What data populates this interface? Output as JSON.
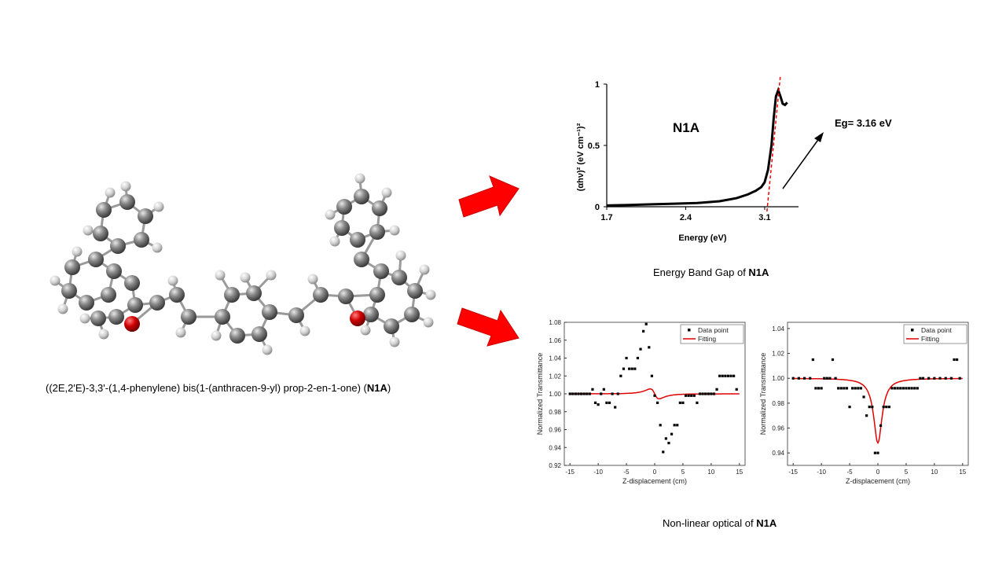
{
  "molecule": {
    "caption_prefix": "((2E,2'E)-3,3'-(1,4-phenylene) bis(1-(anthracen-9-yl) prop-2-en-1-one) (",
    "caption_bold": "N1A",
    "caption_suffix": ")"
  },
  "arrows": {
    "color": "#ff0000"
  },
  "band_gap": {
    "caption_prefix": "Energy Band Gap of ",
    "caption_bold": "N1A",
    "inset_label": "N1A",
    "eg_label": "Eg= 3.16 eV",
    "chart_data": {
      "type": "line",
      "xlabel": "Energy (eV)",
      "ylabel": "(αhν)² (eV cm⁻¹)²",
      "xlim": [
        1.7,
        3.4
      ],
      "ylim": [
        0,
        1
      ],
      "xticks": [
        "1.7",
        "2.4",
        "3.1"
      ],
      "yticks": [
        "0",
        "0.5",
        "1"
      ],
      "series": [
        {
          "x": [
            1.7,
            1.9,
            2.1,
            2.3,
            2.5,
            2.7,
            2.85,
            2.95,
            3.02,
            3.07,
            3.1,
            3.13,
            3.16,
            3.18,
            3.2,
            3.22,
            3.24,
            3.26,
            3.28,
            3.3
          ],
          "y": [
            0.01,
            0.015,
            0.02,
            0.025,
            0.03,
            0.045,
            0.07,
            0.1,
            0.13,
            0.16,
            0.2,
            0.3,
            0.5,
            0.72,
            0.9,
            0.95,
            0.9,
            0.84,
            0.83,
            0.85
          ]
        }
      ],
      "fit_line": {
        "x": [
          3.12,
          3.24
        ],
        "y": [
          0,
          1.0
        ]
      }
    }
  },
  "nlo": {
    "caption_prefix": "Non-linear optical of ",
    "caption_bold": "N1A",
    "charts": [
      {
        "type": "scatter",
        "xlabel": "Z-displacement (cm)",
        "ylabel": "Normalized Transmittance",
        "xlim": [
          -16,
          16
        ],
        "ylim": [
          0.92,
          1.08
        ],
        "xticks": [
          "-15",
          "-10",
          "-5",
          "0",
          "5",
          "10",
          "15"
        ],
        "yticks": [
          "0.92",
          "0.94",
          "0.96",
          "0.98",
          "1.00",
          "1.02",
          "1.04",
          "1.06",
          "1.08"
        ],
        "legend": [
          "Data point",
          "Fitting"
        ],
        "points": {
          "x": [
            -15,
            -14.5,
            -14,
            -13.5,
            -13,
            -12.5,
            -12,
            -11.5,
            -11,
            -10.5,
            -10,
            -9.5,
            -9,
            -8.5,
            -8,
            -7.5,
            -7,
            -6.5,
            -6,
            -5.5,
            -5,
            -4.5,
            -4,
            -3.5,
            -3,
            -2.5,
            -2,
            -1.5,
            -1,
            -0.5,
            0,
            0.5,
            1,
            1.5,
            2,
            2.5,
            3,
            3.5,
            4,
            4.5,
            5,
            5.5,
            6,
            6.5,
            7,
            7.5,
            8,
            8.5,
            9,
            9.5,
            10,
            10.5,
            11,
            11.5,
            12,
            12.5,
            13,
            13.5,
            14,
            14.5
          ],
          "y": [
            1.0,
            1.0,
            1.0,
            1.0,
            1.0,
            1.0,
            1.0,
            1.0,
            1.005,
            0.99,
            0.988,
            1.0,
            1.005,
            0.99,
            0.99,
            1.0,
            0.985,
            1.0,
            1.02,
            1.028,
            1.04,
            1.028,
            1.028,
            1.028,
            1.04,
            1.05,
            1.07,
            1.078,
            1.052,
            1.02,
            0.998,
            0.99,
            0.965,
            0.935,
            0.95,
            0.945,
            0.955,
            0.965,
            0.965,
            0.99,
            0.99,
            0.998,
            0.998,
            0.998,
            0.998,
            0.99,
            1.0,
            1.0,
            1.0,
            1.0,
            1.0,
            1.0,
            1.005,
            1.02,
            1.02,
            1.02,
            1.02,
            1.02,
            1.02,
            1.005
          ]
        },
        "fit": {
          "kind": "peak-valley",
          "z0": 0.9,
          "amp": 0.05
        }
      },
      {
        "type": "scatter",
        "xlabel": "Z-displacement (cm)",
        "ylabel": "Normalized Transmittance",
        "xlim": [
          -16,
          16
        ],
        "ylim": [
          0.93,
          1.045
        ],
        "xticks": [
          "-15",
          "-10",
          "-5",
          "0",
          "5",
          "10",
          "15"
        ],
        "yticks": [
          "0.94",
          "0.96",
          "0.98",
          "1.00",
          "1.02",
          "1.04"
        ],
        "legend": [
          "Data point",
          "Fitting"
        ],
        "points": {
          "x": [
            -15,
            -14,
            -13,
            -12,
            -11.5,
            -11,
            -10.5,
            -10,
            -9.5,
            -9,
            -8.5,
            -8,
            -7.5,
            -7,
            -6.5,
            -6,
            -5.5,
            -5,
            -4.5,
            -4,
            -3.5,
            -3,
            -2.5,
            -2,
            -1.5,
            -1,
            -0.5,
            0,
            0.5,
            1,
            1.5,
            2,
            2.5,
            3,
            3.5,
            4,
            4.5,
            5,
            5.5,
            6,
            6.5,
            7,
            7.5,
            8,
            9,
            10,
            11,
            12,
            13,
            13.5,
            14,
            14.5
          ],
          "y": [
            1.0,
            1.0,
            1.0,
            1.0,
            1.015,
            0.992,
            0.992,
            0.992,
            1.0,
            1.0,
            1.0,
            1.015,
            1.0,
            0.992,
            0.992,
            0.992,
            0.992,
            0.977,
            0.992,
            0.992,
            0.992,
            0.992,
            0.985,
            0.97,
            0.977,
            0.977,
            0.94,
            0.94,
            0.962,
            0.977,
            0.977,
            0.977,
            0.992,
            0.992,
            0.992,
            0.992,
            0.992,
            0.992,
            0.992,
            0.992,
            0.992,
            0.992,
            1.0,
            1.0,
            1.0,
            1.0,
            1.0,
            1.0,
            1.0,
            1.015,
            1.015,
            1.0
          ]
        },
        "fit": {
          "kind": "valley",
          "z0": 0.9,
          "amp": 0.052
        }
      }
    ]
  }
}
